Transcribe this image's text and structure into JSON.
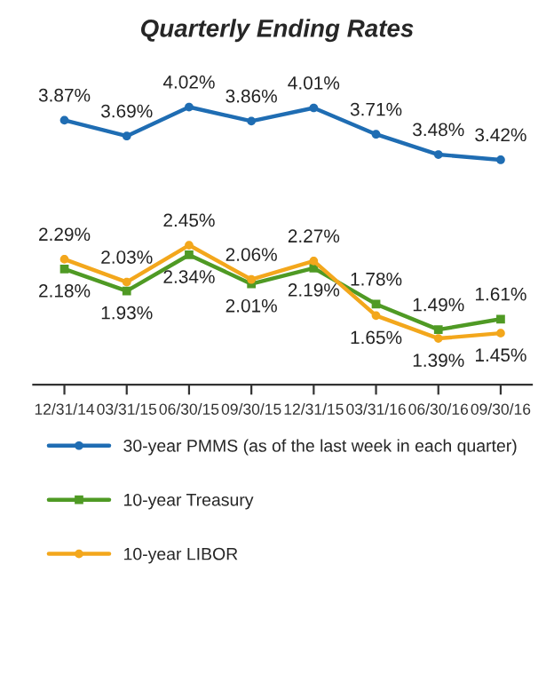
{
  "chart_data": {
    "type": "line",
    "title": "Quarterly Ending Rates",
    "categories": [
      "12/31/14",
      "03/31/15",
      "06/30/15",
      "09/30/15",
      "12/31/15",
      "03/31/16",
      "06/30/16",
      "09/30/16"
    ],
    "series": [
      {
        "name": "30-year PMMS (as of the last week in each quarter)",
        "color": "#1f6db3",
        "marker": "circle",
        "values": [
          3.87,
          3.69,
          4.02,
          3.86,
          4.01,
          3.71,
          3.48,
          3.42
        ],
        "value_labels": [
          "3.87%",
          "3.69%",
          "4.02%",
          "3.86%",
          "4.01%",
          "3.71%",
          "3.48%",
          "3.42%"
        ]
      },
      {
        "name": "10-year Treasury",
        "color": "#4f9a24",
        "marker": "square",
        "values": [
          2.18,
          1.93,
          2.34,
          2.01,
          2.19,
          1.78,
          1.49,
          1.61
        ],
        "value_labels": [
          "2.18%",
          "1.93%",
          "2.34%",
          "2.01%",
          "2.19%",
          "1.78%",
          "1.49%",
          "1.61%"
        ]
      },
      {
        "name": "10-year LIBOR",
        "color": "#f3a71c",
        "marker": "circle",
        "values": [
          2.29,
          2.03,
          2.45,
          2.06,
          2.27,
          1.65,
          1.39,
          1.45
        ],
        "value_labels": [
          "2.29%",
          "2.03%",
          "2.45%",
          "2.06%",
          "2.27%",
          "1.65%",
          "1.39%",
          "1.45%"
        ]
      }
    ],
    "legend": "bottom"
  }
}
